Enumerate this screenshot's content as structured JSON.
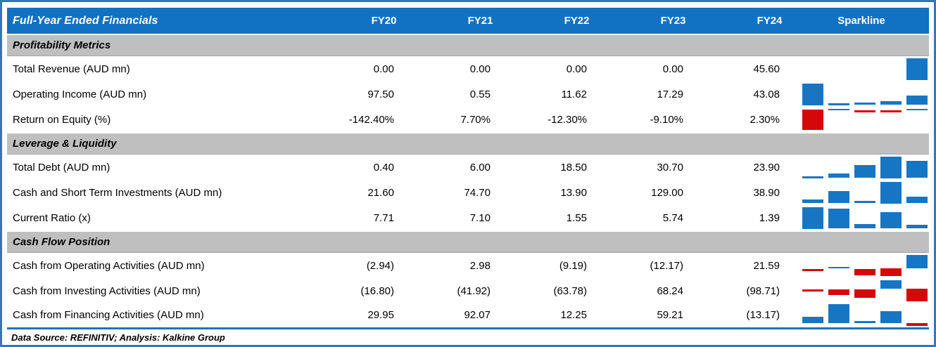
{
  "colors": {
    "header_blue": "#1171C2",
    "band_gray": "#BFBFBF",
    "bar_blue": "#1776C4",
    "bar_red": "#D40808",
    "border_blue": "#3575BD",
    "divider_blue": "#1B72C2"
  },
  "chart_data": {
    "type": "table",
    "title": "Full-Year Ended Financials",
    "columns": [
      "FY20",
      "FY21",
      "FY22",
      "FY23",
      "FY24",
      "Sparkline"
    ],
    "sparkline_style": {
      "type": "column",
      "positive_color": "#1776C4",
      "negative_color": "#D40808"
    },
    "sections": [
      {
        "title": "Profitability Metrics",
        "rows": [
          {
            "label": "Total Revenue (AUD mn)",
            "display": [
              "0.00",
              "0.00",
              "0.00",
              "0.00",
              "45.60"
            ],
            "values": [
              0,
              0,
              0,
              0,
              45.6
            ]
          },
          {
            "label": "Operating Income (AUD mn)",
            "display": [
              "97.50",
              "0.55",
              "11.62",
              "17.29",
              "43.08"
            ],
            "values": [
              97.5,
              0.55,
              11.62,
              17.29,
              43.08
            ]
          },
          {
            "label": "Return on Equity (%)",
            "display": [
              "-142.40%",
              "7.70%",
              "-12.30%",
              "-9.10%",
              "2.30%"
            ],
            "values": [
              -142.4,
              7.7,
              -12.3,
              -9.1,
              2.3
            ]
          }
        ]
      },
      {
        "title": "Leverage & Liquidity",
        "rows": [
          {
            "label": "Total Debt (AUD mn)",
            "display": [
              "0.40",
              "6.00",
              "18.50",
              "30.70",
              "23.90"
            ],
            "values": [
              0.4,
              6.0,
              18.5,
              30.7,
              23.9
            ]
          },
          {
            "label": "Cash and Short Term Investments (AUD mn)",
            "display": [
              "21.60",
              "74.70",
              "13.90",
              "129.00",
              "38.90"
            ],
            "values": [
              21.6,
              74.7,
              13.9,
              129.0,
              38.9
            ]
          },
          {
            "label": "Current Ratio (x)",
            "display": [
              "7.71",
              "7.10",
              "1.55",
              "5.74",
              "1.39"
            ],
            "values": [
              7.71,
              7.1,
              1.55,
              5.74,
              1.39
            ]
          }
        ]
      },
      {
        "title": "Cash Flow Position",
        "rows": [
          {
            "label": "Cash from Operating Activities (AUD mn)",
            "display": [
              "(2.94)",
              "2.98",
              "(9.19)",
              "(12.17)",
              "21.59"
            ],
            "values": [
              -2.94,
              2.98,
              -9.19,
              -12.17,
              21.59
            ]
          },
          {
            "label": "Cash from Investing Activities (AUD mn)",
            "display": [
              "(16.80)",
              "(41.92)",
              "(63.78)",
              "68.24",
              "(98.71)"
            ],
            "values": [
              -16.8,
              -41.92,
              -63.78,
              68.24,
              -98.71
            ]
          },
          {
            "label": "Cash from Financing Activities (AUD mn)",
            "display": [
              "29.95",
              "92.07",
              "12.25",
              "59.21",
              "(13.17)"
            ],
            "values": [
              29.95,
              92.07,
              12.25,
              59.21,
              -13.17
            ]
          }
        ]
      }
    ],
    "source_note": "Data Source: REFINITIV; Analysis: Kalkine Group"
  }
}
